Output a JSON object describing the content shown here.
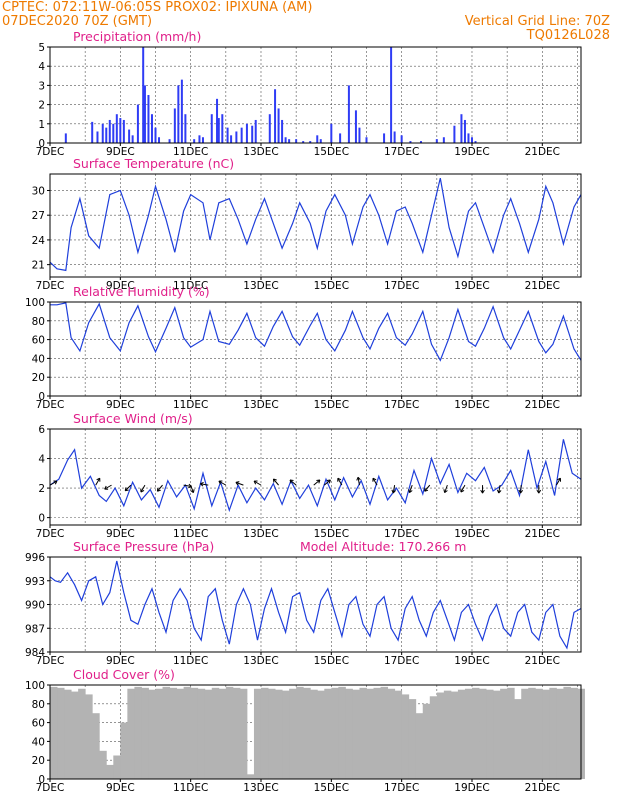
{
  "header": {
    "line1_left": "CPTEC:   072:11W-06:05S   PROX02: IPIXUNA (AM)",
    "line2_left": "07DEC2020 70Z (GMT)",
    "line2_right": "Vertical Grid Line: 70Z",
    "line3_right": "TQ0126L028",
    "color": "#ee7a00"
  },
  "chart_data": [
    {
      "id": "precip",
      "type": "bar",
      "title": "Precipitation (mm/h)",
      "ylim": [
        0,
        5
      ],
      "yticks": [
        0,
        1,
        2,
        3,
        4,
        5
      ],
      "xtick_labels": [
        "7DEC",
        "9DEC",
        "11DEC",
        "13DEC",
        "15DEC",
        "17DEC",
        "19DEC",
        "21DEC"
      ],
      "x_day_range": [
        7,
        22.1
      ],
      "x_values_day": [
        7.45,
        8.2,
        8.35,
        8.5,
        8.6,
        8.7,
        8.8,
        8.9,
        9.0,
        9.1,
        9.25,
        9.35,
        9.5,
        9.65,
        9.7,
        9.8,
        9.9,
        10.0,
        10.1,
        10.4,
        10.55,
        10.65,
        10.75,
        10.85,
        11.1,
        11.25,
        11.35,
        11.6,
        11.75,
        11.8,
        11.9,
        12.05,
        12.15,
        12.3,
        12.45,
        12.6,
        12.75,
        12.85,
        13.25,
        13.4,
        13.5,
        13.6,
        13.7,
        13.8,
        14.0,
        14.2,
        14.4,
        14.6,
        14.7,
        15.0,
        15.25,
        15.5,
        15.7,
        15.8,
        16.0,
        16.5,
        16.7,
        16.8,
        17.0,
        17.25,
        17.55,
        18.0,
        18.2,
        18.5,
        18.7,
        18.8,
        18.9,
        19.0,
        19.1
      ],
      "values": [
        0.5,
        1.1,
        0.6,
        1.0,
        0.8,
        1.2,
        1.0,
        1.5,
        1.3,
        1.2,
        0.7,
        0.4,
        2.0,
        5.0,
        3.0,
        2.5,
        1.5,
        0.8,
        0.3,
        0.2,
        1.8,
        3.0,
        3.3,
        1.5,
        0.2,
        0.4,
        0.3,
        1.5,
        2.3,
        1.3,
        1.5,
        0.8,
        0.4,
        0.6,
        0.8,
        1.0,
        0.9,
        1.2,
        1.5,
        2.8,
        1.8,
        1.2,
        0.3,
        0.2,
        0.2,
        0.1,
        0.1,
        0.4,
        0.2,
        1.0,
        0.5,
        3.0,
        1.7,
        0.8,
        0.3,
        0.5,
        5.0,
        0.6,
        0.4,
        0.1,
        0.1,
        0.2,
        0.3,
        0.9,
        1.5,
        1.2,
        0.5,
        0.3,
        0.1
      ]
    },
    {
      "id": "temp",
      "type": "line",
      "title": "Surface Temperature (nC)",
      "ylim": [
        19.5,
        32
      ],
      "yticks": [
        21,
        24,
        27,
        30
      ],
      "xtick_labels": [
        "7DEC",
        "9DEC",
        "11DEC",
        "13DEC",
        "15DEC",
        "17DEC",
        "19DEC",
        "21DEC"
      ],
      "x_day_range": [
        7,
        22.1
      ],
      "series": [
        {
          "color": "#1f3fdb",
          "x_day": [
            7,
            7.2,
            7.45,
            7.6,
            7.85,
            8.1,
            8.4,
            8.7,
            9.0,
            9.25,
            9.5,
            9.8,
            10.0,
            10.3,
            10.55,
            10.8,
            11.0,
            11.35,
            11.55,
            11.8,
            12.1,
            12.35,
            12.6,
            12.85,
            13.1,
            13.35,
            13.6,
            13.9,
            14.1,
            14.4,
            14.6,
            14.85,
            15.1,
            15.4,
            15.6,
            15.9,
            16.1,
            16.35,
            16.6,
            16.85,
            17.1,
            17.3,
            17.6,
            17.85,
            18.1,
            18.35,
            18.6,
            18.9,
            19.1,
            19.35,
            19.6,
            19.9,
            20.1,
            20.35,
            20.6,
            20.9,
            21.1,
            21.3,
            21.6,
            21.9,
            22.1
          ],
          "values": [
            21.3,
            20.5,
            20.3,
            25.5,
            29.0,
            24.5,
            23.0,
            29.5,
            30.0,
            27.0,
            22.5,
            27.0,
            30.5,
            26.5,
            22.5,
            27.5,
            29.5,
            28.5,
            24.0,
            28.5,
            29.0,
            26.5,
            23.5,
            26.5,
            29.0,
            26.0,
            23.0,
            26.0,
            28.5,
            26.0,
            23.0,
            27.5,
            29.5,
            27.0,
            23.5,
            28.0,
            29.5,
            27.0,
            23.5,
            27.5,
            28.0,
            26.0,
            22.5,
            27.0,
            31.5,
            25.5,
            22.0,
            27.5,
            28.5,
            25.5,
            22.5,
            27.0,
            29.0,
            26.0,
            22.5,
            26.5,
            30.5,
            28.5,
            23.5,
            28.0,
            29.5
          ]
        }
      ]
    },
    {
      "id": "rh",
      "type": "line",
      "title": "Relative Humidity (%)",
      "ylim": [
        0,
        100
      ],
      "yticks": [
        0,
        20,
        40,
        60,
        80,
        100
      ],
      "xtick_labels": [
        "7DEC",
        "9DEC",
        "11DEC",
        "13DEC",
        "15DEC",
        "17DEC",
        "19DEC",
        "21DEC"
      ],
      "x_day_range": [
        7,
        22.1
      ],
      "series": [
        {
          "color": "#1f3fdb",
          "x_day": [
            7,
            7.2,
            7.45,
            7.6,
            7.85,
            8.1,
            8.4,
            8.7,
            9.0,
            9.25,
            9.5,
            9.8,
            10.0,
            10.3,
            10.55,
            10.8,
            11.0,
            11.35,
            11.55,
            11.8,
            12.1,
            12.35,
            12.6,
            12.85,
            13.1,
            13.35,
            13.6,
            13.9,
            14.1,
            14.4,
            14.6,
            14.85,
            15.1,
            15.4,
            15.6,
            15.9,
            16.1,
            16.35,
            16.6,
            16.85,
            17.1,
            17.3,
            17.6,
            17.85,
            18.1,
            18.35,
            18.6,
            18.9,
            19.1,
            19.35,
            19.6,
            19.9,
            20.1,
            20.35,
            20.6,
            20.9,
            21.1,
            21.3,
            21.6,
            21.9,
            22.1
          ],
          "values": [
            97,
            97,
            99,
            62,
            48,
            78,
            98,
            62,
            48,
            78,
            96,
            63,
            47,
            72,
            94,
            62,
            52,
            60,
            90,
            58,
            55,
            70,
            88,
            62,
            53,
            74,
            90,
            63,
            54,
            75,
            88,
            60,
            48,
            70,
            90,
            62,
            50,
            72,
            88,
            62,
            54,
            66,
            90,
            55,
            38,
            62,
            92,
            58,
            53,
            72,
            95,
            62,
            50,
            70,
            90,
            58,
            46,
            55,
            85,
            50,
            38
          ]
        }
      ]
    },
    {
      "id": "wind",
      "type": "line",
      "title": "Surface Wind (m/s)",
      "ylim": [
        -0.5,
        6
      ],
      "yticks": [
        0,
        2,
        4,
        6
      ],
      "xtick_labels": [
        "7DEC",
        "9DEC",
        "11DEC",
        "13DEC",
        "15DEC",
        "17DEC",
        "19DEC",
        "21DEC"
      ],
      "x_day_range": [
        7,
        22.1
      ],
      "series": [
        {
          "color": "#1f3fdb",
          "x_day": [
            7,
            7.25,
            7.5,
            7.7,
            7.9,
            8.15,
            8.4,
            8.6,
            8.85,
            9.1,
            9.35,
            9.6,
            9.85,
            10.1,
            10.35,
            10.6,
            10.85,
            11.1,
            11.35,
            11.6,
            11.85,
            12.1,
            12.35,
            12.6,
            12.85,
            13.1,
            13.35,
            13.6,
            13.85,
            14.1,
            14.35,
            14.6,
            14.85,
            15.1,
            15.35,
            15.6,
            15.85,
            16.1,
            16.35,
            16.6,
            16.85,
            17.1,
            17.35,
            17.6,
            17.85,
            18.1,
            18.35,
            18.6,
            18.85,
            19.1,
            19.35,
            19.6,
            19.85,
            20.1,
            20.35,
            20.6,
            20.85,
            21.1,
            21.35,
            21.6,
            21.85,
            22.1
          ],
          "values": [
            2.2,
            2.6,
            3.9,
            4.6,
            2.0,
            2.8,
            1.5,
            1.1,
            2.0,
            0.8,
            2.4,
            1.2,
            1.9,
            0.7,
            2.5,
            1.4,
            2.2,
            0.6,
            3.0,
            0.8,
            2.4,
            0.5,
            2.2,
            1.0,
            2.0,
            1.2,
            2.3,
            0.9,
            2.5,
            1.3,
            2.2,
            0.8,
            2.6,
            1.2,
            2.7,
            1.4,
            2.5,
            0.9,
            2.8,
            1.2,
            2.0,
            1.0,
            3.2,
            1.6,
            4.0,
            2.3,
            3.6,
            1.7,
            3.0,
            2.5,
            3.4,
            1.8,
            2.2,
            3.2,
            1.5,
            4.6,
            2.0,
            3.8,
            1.5,
            5.3,
            3.0,
            2.6
          ]
        }
      ],
      "vectors": [
        {
          "x_day": 7.0,
          "angle": -30
        },
        {
          "x_day": 8.3,
          "angle": -60
        },
        {
          "x_day": 8.75,
          "angle": 150
        },
        {
          "x_day": 9.3,
          "angle": 135
        },
        {
          "x_day": 9.7,
          "angle": 120
        },
        {
          "x_day": 10.2,
          "angle": 130
        },
        {
          "x_day": 10.8,
          "angle": 10
        },
        {
          "x_day": 11.0,
          "angle": 70
        },
        {
          "x_day": 11.5,
          "angle": -170
        },
        {
          "x_day": 12.0,
          "angle": -150
        },
        {
          "x_day": 12.5,
          "angle": -160
        },
        {
          "x_day": 13.0,
          "angle": -150
        },
        {
          "x_day": 13.5,
          "angle": -130
        },
        {
          "x_day": 14.0,
          "angle": -140
        },
        {
          "x_day": 14.5,
          "angle": -40
        },
        {
          "x_day": 14.8,
          "angle": -40
        },
        {
          "x_day": 15.3,
          "angle": -120
        },
        {
          "x_day": 15.8,
          "angle": -100
        },
        {
          "x_day": 16.3,
          "angle": -120
        },
        {
          "x_day": 16.8,
          "angle": 100
        },
        {
          "x_day": 17.3,
          "angle": 110
        },
        {
          "x_day": 17.8,
          "angle": 130
        },
        {
          "x_day": 18.3,
          "angle": 110
        },
        {
          "x_day": 18.8,
          "angle": 120
        },
        {
          "x_day": 19.3,
          "angle": 90
        },
        {
          "x_day": 19.8,
          "angle": 100
        },
        {
          "x_day": 20.4,
          "angle": 95
        },
        {
          "x_day": 20.9,
          "angle": 90
        },
        {
          "x_day": 21.4,
          "angle": -60
        }
      ]
    },
    {
      "id": "pres",
      "type": "line",
      "title": "Surface Pressure (hPa)",
      "annotation": "Model Altitude: 170.266 m",
      "ylim": [
        984,
        996
      ],
      "yticks": [
        984,
        987,
        990,
        993,
        996
      ],
      "xtick_labels": [
        "7DEC",
        "9DEC",
        "11DEC",
        "13DEC",
        "15DEC",
        "17DEC",
        "19DEC",
        "21DEC"
      ],
      "x_day_range": [
        7,
        22.1
      ],
      "series": [
        {
          "color": "#1f3fdb",
          "x_day": [
            7,
            7.15,
            7.3,
            7.5,
            7.7,
            7.9,
            8.1,
            8.3,
            8.5,
            8.7,
            8.9,
            9.1,
            9.3,
            9.5,
            9.7,
            9.9,
            10.1,
            10.3,
            10.5,
            10.7,
            10.9,
            11.1,
            11.3,
            11.5,
            11.7,
            11.9,
            12.1,
            12.3,
            12.5,
            12.7,
            12.9,
            13.1,
            13.3,
            13.5,
            13.7,
            13.9,
            14.1,
            14.3,
            14.5,
            14.7,
            14.9,
            15.1,
            15.3,
            15.5,
            15.7,
            15.9,
            16.1,
            16.3,
            16.5,
            16.7,
            16.9,
            17.1,
            17.3,
            17.5,
            17.7,
            17.9,
            18.1,
            18.3,
            18.5,
            18.7,
            18.9,
            19.1,
            19.3,
            19.5,
            19.7,
            19.9,
            20.1,
            20.3,
            20.5,
            20.7,
            20.9,
            21.1,
            21.3,
            21.5,
            21.7,
            21.9,
            22.1
          ],
          "values": [
            993.5,
            993,
            992.8,
            994,
            992.5,
            990.5,
            993,
            993.5,
            990,
            991.5,
            995.5,
            991.5,
            988,
            987.5,
            990,
            992,
            989,
            986.5,
            990.5,
            992,
            990.5,
            987,
            985.5,
            991,
            992,
            988,
            985,
            990,
            992,
            990,
            985.5,
            989.5,
            992,
            989,
            986.5,
            991,
            991.5,
            988,
            986.5,
            990.5,
            992,
            989,
            986,
            990,
            991,
            987.5,
            986,
            990,
            991,
            987,
            985.5,
            989.5,
            991,
            988,
            986,
            989,
            990.5,
            988,
            985.5,
            989,
            990,
            987.5,
            985.5,
            988.5,
            990,
            987,
            986,
            989,
            990,
            986.5,
            985.5,
            989,
            990,
            986,
            984.5,
            989,
            989.5
          ]
        }
      ]
    },
    {
      "id": "cloud",
      "type": "bar",
      "title": "Cloud Cover (%)",
      "ylim": [
        0,
        100
      ],
      "yticks": [
        0,
        20,
        40,
        60,
        80,
        100
      ],
      "xtick_labels": [
        "7DEC",
        "9DEC",
        "11DEC",
        "13DEC",
        "15DEC",
        "17DEC",
        "19DEC",
        "21DEC"
      ],
      "x_day_range": [
        7,
        22.1
      ],
      "color": "#b3b3b3",
      "x_values_day": [
        7,
        7.2,
        7.4,
        7.6,
        7.8,
        8.0,
        8.2,
        8.4,
        8.6,
        8.8,
        9.0,
        9.2,
        9.4,
        9.6,
        9.8,
        10.0,
        10.2,
        10.4,
        10.6,
        10.8,
        11.0,
        11.2,
        11.4,
        11.6,
        11.8,
        12.0,
        12.2,
        12.4,
        12.6,
        12.8,
        13.0,
        13.2,
        13.4,
        13.6,
        13.8,
        14.0,
        14.2,
        14.4,
        14.6,
        14.8,
        15.0,
        15.2,
        15.4,
        15.6,
        15.8,
        16.0,
        16.2,
        16.4,
        16.6,
        16.8,
        17.0,
        17.2,
        17.4,
        17.6,
        17.8,
        18.0,
        18.2,
        18.4,
        18.6,
        18.8,
        19.0,
        19.2,
        19.4,
        19.6,
        19.8,
        20.0,
        20.2,
        20.4,
        20.6,
        20.8,
        21.0,
        21.2,
        21.4,
        21.6,
        21.8,
        22.0
      ],
      "values": [
        98,
        97,
        95,
        93,
        96,
        90,
        70,
        30,
        15,
        25,
        60,
        96,
        98,
        97,
        95,
        96,
        98,
        97,
        96,
        98,
        97,
        96,
        95,
        97,
        96,
        98,
        97,
        96,
        5,
        96,
        97,
        96,
        95,
        94,
        96,
        98,
        97,
        95,
        94,
        96,
        97,
        98,
        96,
        95,
        97,
        96,
        97,
        98,
        96,
        94,
        90,
        85,
        70,
        80,
        88,
        92,
        94,
        93,
        95,
        96,
        97,
        96,
        95,
        94,
        96,
        97,
        85,
        96,
        97,
        96,
        95,
        97,
        96,
        98,
        97,
        96
      ]
    }
  ]
}
